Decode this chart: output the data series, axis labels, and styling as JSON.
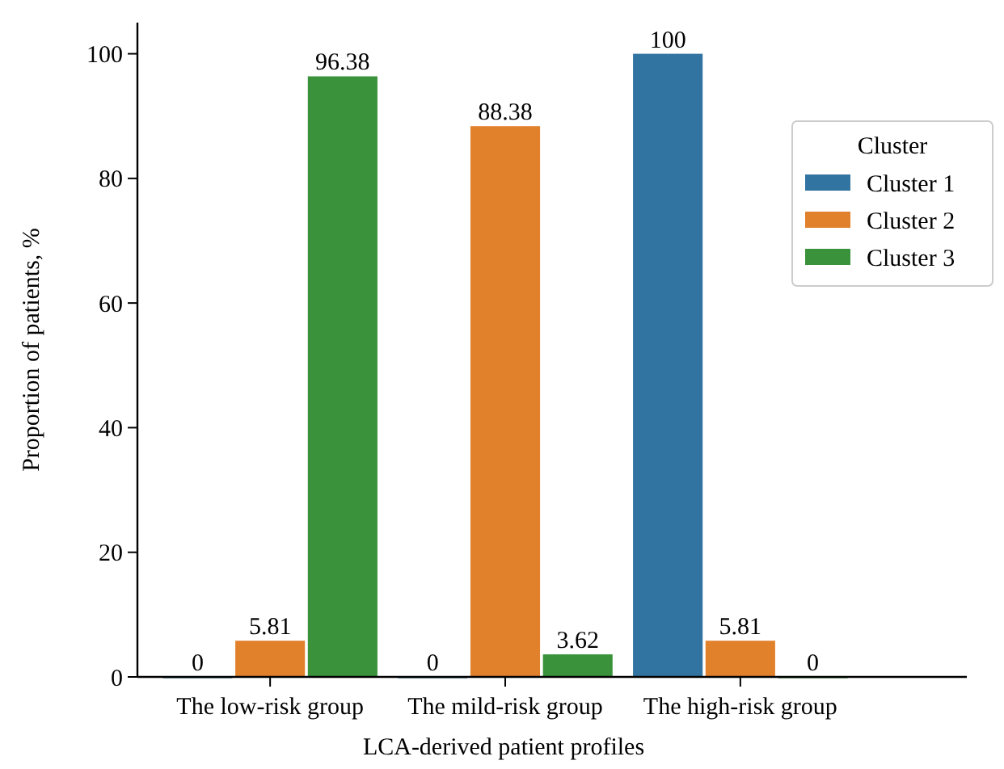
{
  "chart_data": {
    "type": "bar",
    "xlabel": "LCA-derived patient profiles",
    "ylabel": "Proportion of patients, %",
    "legend_title": "Cluster",
    "categories": [
      "The low-risk group",
      "The mild-risk group",
      "The high-risk group"
    ],
    "series": [
      {
        "name": "Cluster 1",
        "color": "#3274a1",
        "values": [
          0,
          0,
          100
        ]
      },
      {
        "name": "Cluster 2",
        "color": "#e1812c",
        "values": [
          5.81,
          88.38,
          5.81
        ]
      },
      {
        "name": "Cluster 3",
        "color": "#3a923a",
        "values": [
          96.38,
          3.62,
          0
        ]
      }
    ],
    "ylim": [
      0,
      105
    ],
    "yticks": [
      0,
      20,
      40,
      60,
      80,
      100
    ],
    "grid": false,
    "legend": "right",
    "data_labels": true
  }
}
